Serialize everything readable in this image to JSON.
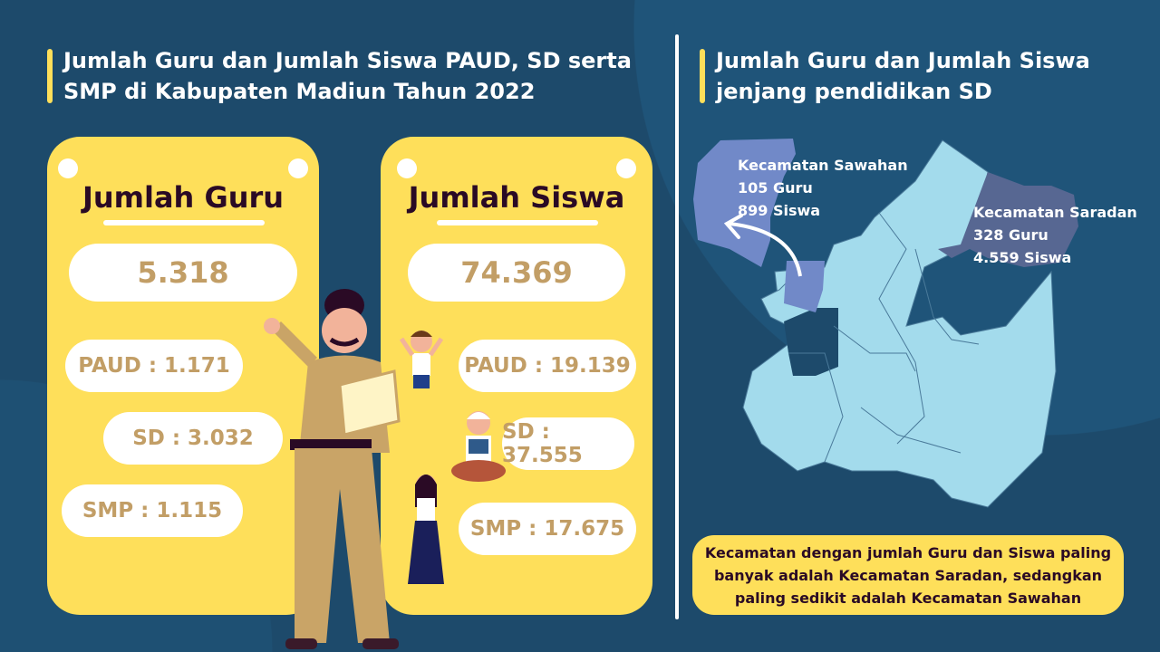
{
  "left": {
    "title_line1": "Jumlah Guru dan Jumlah Siswa PAUD, SD serta",
    "title_line2": "SMP di Kabupaten Madiun Tahun 2022",
    "guru": {
      "heading": "Jumlah Guru",
      "total": "5.318",
      "paud": "PAUD : 1.171",
      "sd": "SD : 3.032",
      "smp": "SMP : 1.115"
    },
    "siswa": {
      "heading": "Jumlah Siswa",
      "total": "74.369",
      "paud": "PAUD : 19.139",
      "sd": "SD : 37.555",
      "smp": "SMP : 17.675"
    }
  },
  "right": {
    "title_line1": "Jumlah Guru dan Jumlah Siswa",
    "title_line2": "jenjang pendidikan SD",
    "sawahan": {
      "name": "Kecamatan Sawahan",
      "guru": "105 Guru",
      "siswa": "899 Siswa"
    },
    "saradan": {
      "name": "Kecamatan Saradan",
      "guru": "328 Guru",
      "siswa": "4.559 Siswa"
    },
    "note": "Kecamatan dengan jumlah Guru dan Siswa paling banyak adalah Kecamatan Saradan, sedangkan paling sedikit adalah Kecamatan Sawahan"
  },
  "colors": {
    "background": "#1d4a6b",
    "card": "#fedf5a",
    "number": "#c29e66",
    "map": "#a3dbec",
    "sawahan": "#7189c8",
    "saradan": "#576792"
  }
}
